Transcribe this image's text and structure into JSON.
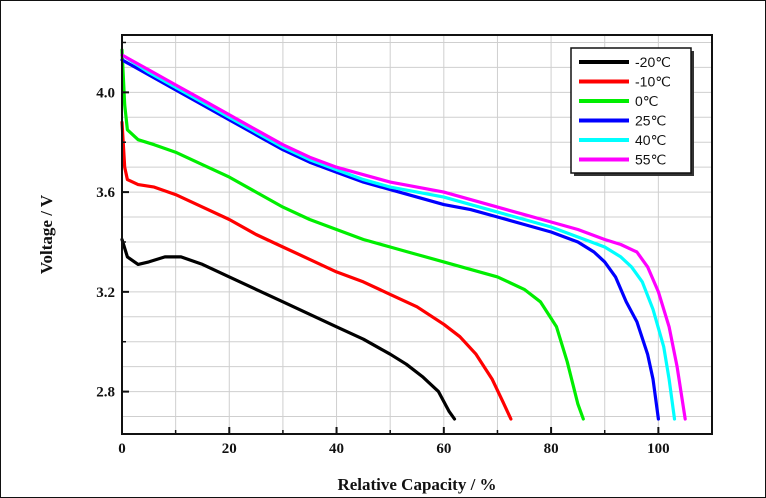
{
  "chart_data": {
    "type": "line",
    "xlabel": "Relative Capacity / %",
    "ylabel": "Voltage / V",
    "xlim": [
      0,
      110
    ],
    "ylim": [
      2.63,
      4.23
    ],
    "xticks": [
      0,
      20,
      40,
      60,
      80,
      100
    ],
    "yticks": [
      2.8,
      3.2,
      3.6,
      4.0
    ],
    "ytick_labels": [
      "2.8",
      "3.2",
      "3.6",
      "4.0"
    ],
    "grid": true,
    "legend_position": "top-right",
    "series": [
      {
        "name": "-20℃",
        "color": "#000000",
        "points": [
          [
            0,
            3.41
          ],
          [
            1,
            3.34
          ],
          [
            3,
            3.31
          ],
          [
            5,
            3.32
          ],
          [
            8,
            3.34
          ],
          [
            11,
            3.34
          ],
          [
            15,
            3.31
          ],
          [
            20,
            3.26
          ],
          [
            25,
            3.21
          ],
          [
            30,
            3.16
          ],
          [
            35,
            3.11
          ],
          [
            40,
            3.06
          ],
          [
            45,
            3.01
          ],
          [
            50,
            2.95
          ],
          [
            53,
            2.91
          ],
          [
            56,
            2.86
          ],
          [
            59,
            2.8
          ],
          [
            61,
            2.72
          ],
          [
            62,
            2.69
          ]
        ]
      },
      {
        "name": "-10℃",
        "color": "#ff0000",
        "points": [
          [
            0,
            3.88
          ],
          [
            0.5,
            3.7
          ],
          [
            1,
            3.65
          ],
          [
            3,
            3.63
          ],
          [
            6,
            3.62
          ],
          [
            10,
            3.59
          ],
          [
            15,
            3.54
          ],
          [
            20,
            3.49
          ],
          [
            25,
            3.43
          ],
          [
            30,
            3.38
          ],
          [
            35,
            3.33
          ],
          [
            40,
            3.28
          ],
          [
            45,
            3.24
          ],
          [
            50,
            3.19
          ],
          [
            55,
            3.14
          ],
          [
            60,
            3.07
          ],
          [
            63,
            3.02
          ],
          [
            66,
            2.95
          ],
          [
            69,
            2.85
          ],
          [
            71,
            2.76
          ],
          [
            72.5,
            2.69
          ]
        ]
      },
      {
        "name": "0℃",
        "color": "#00ee00",
        "points": [
          [
            0,
            4.17
          ],
          [
            0.5,
            3.95
          ],
          [
            1,
            3.85
          ],
          [
            3,
            3.81
          ],
          [
            6,
            3.79
          ],
          [
            10,
            3.76
          ],
          [
            15,
            3.71
          ],
          [
            20,
            3.66
          ],
          [
            25,
            3.6
          ],
          [
            30,
            3.54
          ],
          [
            35,
            3.49
          ],
          [
            40,
            3.45
          ],
          [
            45,
            3.41
          ],
          [
            50,
            3.38
          ],
          [
            55,
            3.35
          ],
          [
            60,
            3.32
          ],
          [
            65,
            3.29
          ],
          [
            70,
            3.26
          ],
          [
            75,
            3.21
          ],
          [
            78,
            3.16
          ],
          [
            81,
            3.06
          ],
          [
            83,
            2.92
          ],
          [
            85,
            2.75
          ],
          [
            86,
            2.69
          ]
        ]
      },
      {
        "name": "25℃",
        "color": "#0000ff",
        "points": [
          [
            0,
            4.13
          ],
          [
            5,
            4.07
          ],
          [
            10,
            4.01
          ],
          [
            15,
            3.95
          ],
          [
            20,
            3.89
          ],
          [
            25,
            3.83
          ],
          [
            30,
            3.77
          ],
          [
            35,
            3.72
          ],
          [
            40,
            3.68
          ],
          [
            45,
            3.64
          ],
          [
            50,
            3.61
          ],
          [
            55,
            3.58
          ],
          [
            60,
            3.55
          ],
          [
            65,
            3.53
          ],
          [
            70,
            3.5
          ],
          [
            75,
            3.47
          ],
          [
            80,
            3.44
          ],
          [
            85,
            3.4
          ],
          [
            88,
            3.36
          ],
          [
            90,
            3.32
          ],
          [
            92,
            3.26
          ],
          [
            94,
            3.16
          ],
          [
            96,
            3.08
          ],
          [
            98,
            2.95
          ],
          [
            99,
            2.85
          ],
          [
            100,
            2.69
          ]
        ]
      },
      {
        "name": "40℃",
        "color": "#00ffff",
        "points": [
          [
            0,
            4.15
          ],
          [
            5,
            4.08
          ],
          [
            10,
            4.02
          ],
          [
            15,
            3.96
          ],
          [
            20,
            3.9
          ],
          [
            25,
            3.84
          ],
          [
            30,
            3.78
          ],
          [
            35,
            3.73
          ],
          [
            40,
            3.69
          ],
          [
            45,
            3.65
          ],
          [
            50,
            3.62
          ],
          [
            55,
            3.6
          ],
          [
            60,
            3.58
          ],
          [
            65,
            3.55
          ],
          [
            70,
            3.52
          ],
          [
            75,
            3.49
          ],
          [
            80,
            3.46
          ],
          [
            85,
            3.42
          ],
          [
            90,
            3.38
          ],
          [
            93,
            3.34
          ],
          [
            95,
            3.3
          ],
          [
            97,
            3.24
          ],
          [
            99,
            3.13
          ],
          [
            101,
            2.98
          ],
          [
            102,
            2.85
          ],
          [
            103,
            2.69
          ]
        ]
      },
      {
        "name": "55℃",
        "color": "#ff00ff",
        "points": [
          [
            0,
            4.15
          ],
          [
            5,
            4.09
          ],
          [
            10,
            4.03
          ],
          [
            15,
            3.97
          ],
          [
            20,
            3.91
          ],
          [
            25,
            3.85
          ],
          [
            30,
            3.79
          ],
          [
            35,
            3.74
          ],
          [
            40,
            3.7
          ],
          [
            45,
            3.67
          ],
          [
            50,
            3.64
          ],
          [
            55,
            3.62
          ],
          [
            60,
            3.6
          ],
          [
            65,
            3.57
          ],
          [
            70,
            3.54
          ],
          [
            75,
            3.51
          ],
          [
            80,
            3.48
          ],
          [
            85,
            3.45
          ],
          [
            90,
            3.41
          ],
          [
            93,
            3.39
          ],
          [
            96,
            3.36
          ],
          [
            98,
            3.3
          ],
          [
            100,
            3.2
          ],
          [
            102,
            3.06
          ],
          [
            103.5,
            2.9
          ],
          [
            104.5,
            2.76
          ],
          [
            105,
            2.69
          ]
        ]
      }
    ]
  }
}
